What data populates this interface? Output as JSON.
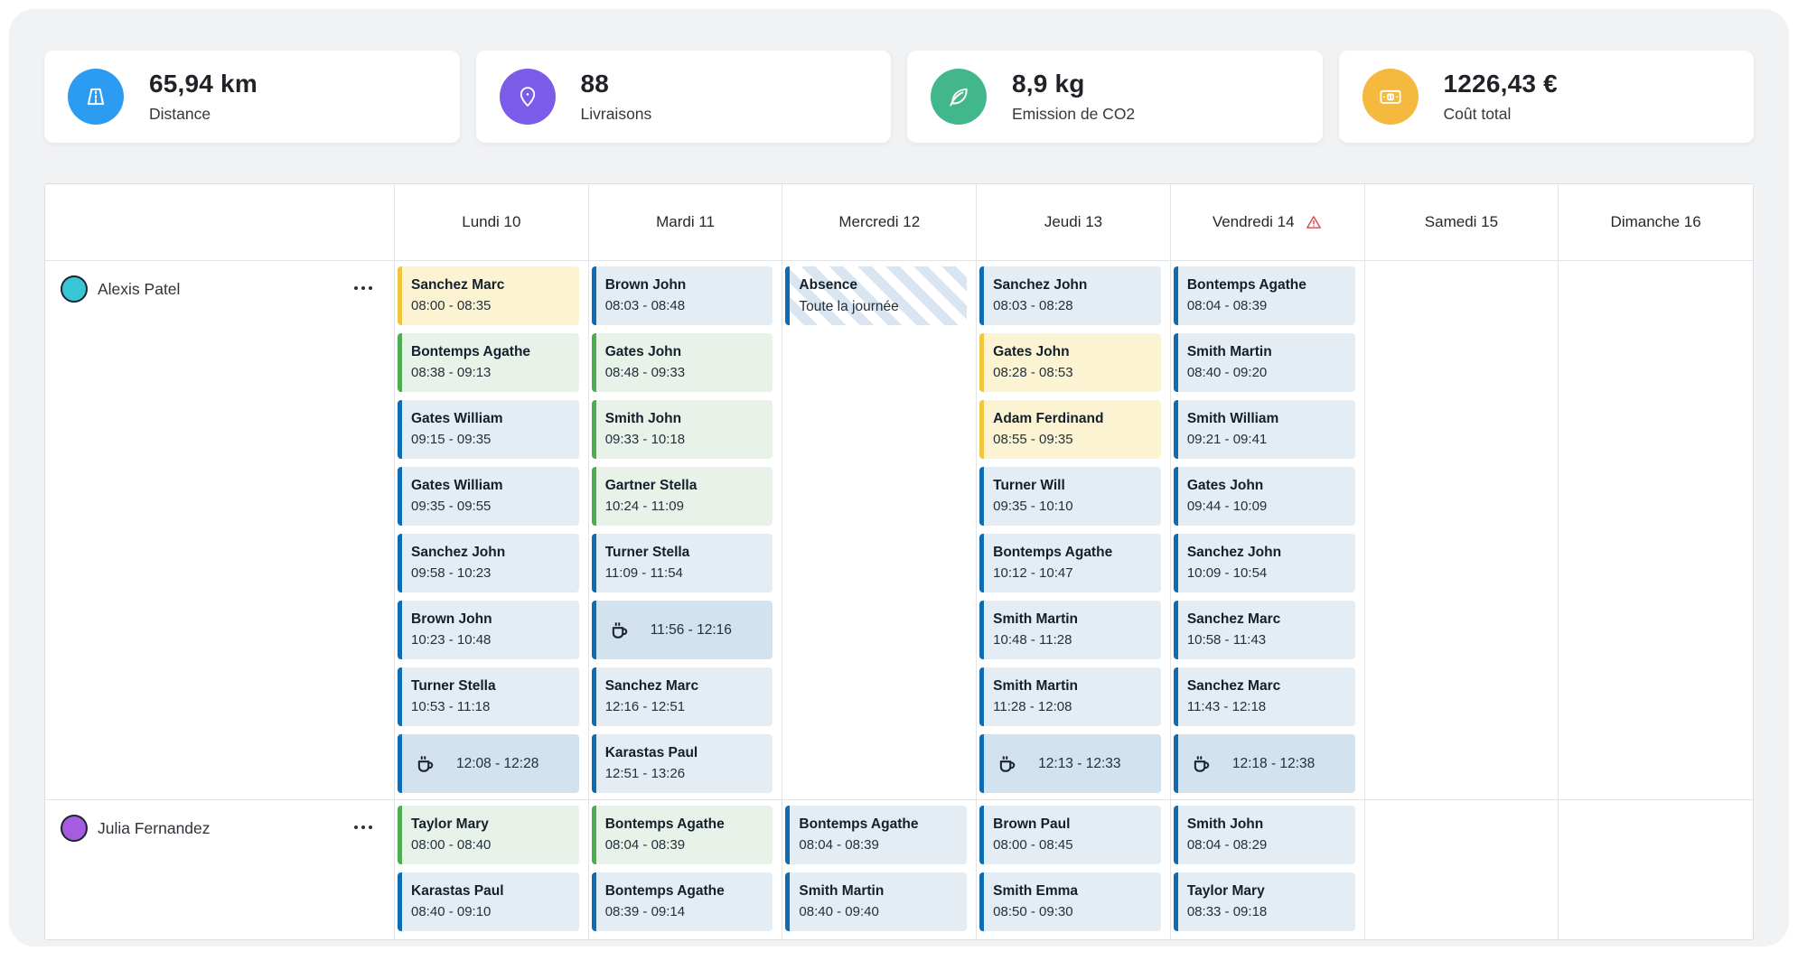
{
  "stats": [
    {
      "icon": "road-icon",
      "color": "#2b9cf2",
      "value": "65,94 km",
      "label": "Distance"
    },
    {
      "icon": "pin-icon",
      "color": "#7a5ce9",
      "value": "88",
      "label": "Livraisons"
    },
    {
      "icon": "leaf-icon",
      "color": "#42b78c",
      "value": "8,9 kg",
      "label": "Emission de CO2"
    },
    {
      "icon": "banknote-icon",
      "color": "#f6b93f",
      "value": "1226,43 €",
      "label": "Coût total"
    }
  ],
  "entry_colors": {
    "blue": {
      "bg": "#e4ecf4",
      "border": "#0f6cb2"
    },
    "green": {
      "bg": "#e9f2e9",
      "border": "#4cae51"
    },
    "yellow": {
      "bg": "#fcf3d3",
      "border": "#eec73e"
    },
    "break": {
      "bg": "#d2e2ef",
      "border": "#0f6cb2"
    },
    "absence": {
      "stripe": "#d9e6f2",
      "border": "#0f6cb2"
    }
  },
  "calendar": {
    "days": [
      {
        "label": "Lundi 10"
      },
      {
        "label": "Mardi 11"
      },
      {
        "label": "Mercredi 12"
      },
      {
        "label": "Jeudi 13"
      },
      {
        "label": "Vendredi 14",
        "warning": true
      },
      {
        "label": "Samedi 15"
      },
      {
        "label": "Dimanche 16"
      }
    ],
    "rows": [
      {
        "name": "Alexis Patel",
        "avatar_color": "#38c5d6",
        "schedule": [
          [
            {
              "type": "visit",
              "name": "Sanchez Marc",
              "time": "08:00 - 08:35",
              "variant": "yellow"
            },
            {
              "type": "visit",
              "name": "Bontemps Agathe",
              "time": "08:38 - 09:13",
              "variant": "green"
            },
            {
              "type": "visit",
              "name": "Gates William",
              "time": "09:15 - 09:35",
              "variant": "blue"
            },
            {
              "type": "visit",
              "name": "Gates William",
              "time": "09:35 - 09:55",
              "variant": "blue"
            },
            {
              "type": "visit",
              "name": "Sanchez John",
              "time": "09:58 - 10:23",
              "variant": "blue"
            },
            {
              "type": "visit",
              "name": "Brown John",
              "time": "10:23 - 10:48",
              "variant": "blue"
            },
            {
              "type": "visit",
              "name": "Turner Stella",
              "time": "10:53 - 11:18",
              "variant": "blue"
            },
            {
              "type": "break",
              "time": "12:08 - 12:28"
            }
          ],
          [
            {
              "type": "visit",
              "name": "Brown John",
              "time": "08:03 - 08:48",
              "variant": "blue"
            },
            {
              "type": "visit",
              "name": "Gates John",
              "time": "08:48 - 09:33",
              "variant": "green"
            },
            {
              "type": "visit",
              "name": "Smith John",
              "time": "09:33 - 10:18",
              "variant": "green"
            },
            {
              "type": "visit",
              "name": "Gartner Stella",
              "time": "10:24 - 11:09",
              "variant": "green"
            },
            {
              "type": "visit",
              "name": "Turner Stella",
              "time": "11:09 - 11:54",
              "variant": "blue"
            },
            {
              "type": "break",
              "time": "11:56 - 12:16"
            },
            {
              "type": "visit",
              "name": "Sanchez Marc",
              "time": "12:16 - 12:51",
              "variant": "blue"
            },
            {
              "type": "visit",
              "name": "Karastas Paul",
              "time": "12:51 - 13:26",
              "variant": "blue"
            }
          ],
          [
            {
              "type": "absence",
              "title": "Absence",
              "subtitle": "Toute la journée"
            }
          ],
          [
            {
              "type": "visit",
              "name": "Sanchez John",
              "time": "08:03 - 08:28",
              "variant": "blue"
            },
            {
              "type": "visit",
              "name": "Gates John",
              "time": "08:28 - 08:53",
              "variant": "yellow"
            },
            {
              "type": "visit",
              "name": "Adam Ferdinand",
              "time": "08:55 - 09:35",
              "variant": "yellow"
            },
            {
              "type": "visit",
              "name": "Turner Will",
              "time": "09:35 - 10:10",
              "variant": "blue"
            },
            {
              "type": "visit",
              "name": "Bontemps Agathe",
              "time": "10:12 - 10:47",
              "variant": "blue"
            },
            {
              "type": "visit",
              "name": "Smith Martin",
              "time": "10:48 - 11:28",
              "variant": "blue"
            },
            {
              "type": "visit",
              "name": "Smith Martin",
              "time": "11:28 - 12:08",
              "variant": "blue"
            },
            {
              "type": "break",
              "time": "12:13 - 12:33"
            }
          ],
          [
            {
              "type": "visit",
              "name": "Bontemps Agathe",
              "time": "08:04 - 08:39",
              "variant": "blue"
            },
            {
              "type": "visit",
              "name": "Smith Martin",
              "time": "08:40 - 09:20",
              "variant": "blue"
            },
            {
              "type": "visit",
              "name": "Smith William",
              "time": "09:21 - 09:41",
              "variant": "blue"
            },
            {
              "type": "visit",
              "name": "Gates John",
              "time": "09:44 - 10:09",
              "variant": "blue"
            },
            {
              "type": "visit",
              "name": "Sanchez John",
              "time": "10:09 - 10:54",
              "variant": "blue"
            },
            {
              "type": "visit",
              "name": "Sanchez Marc",
              "time": "10:58 - 11:43",
              "variant": "blue"
            },
            {
              "type": "visit",
              "name": "Sanchez Marc",
              "time": "11:43 - 12:18",
              "variant": "blue"
            },
            {
              "type": "break",
              "time": "12:18 - 12:38"
            }
          ],
          [],
          []
        ]
      },
      {
        "name": "Julia Fernandez",
        "avatar_color": "#a55ce0",
        "schedule": [
          [
            {
              "type": "visit",
              "name": "Taylor Mary",
              "time": "08:00 - 08:40",
              "variant": "green"
            },
            {
              "type": "visit",
              "name": "Karastas Paul",
              "time": "08:40 - 09:10",
              "variant": "blue"
            }
          ],
          [
            {
              "type": "visit",
              "name": "Bontemps Agathe",
              "time": "08:04 - 08:39",
              "variant": "green"
            },
            {
              "type": "visit",
              "name": "Bontemps Agathe",
              "time": "08:39 - 09:14",
              "variant": "blue"
            }
          ],
          [
            {
              "type": "visit",
              "name": "Bontemps Agathe",
              "time": "08:04 - 08:39",
              "variant": "blue"
            },
            {
              "type": "visit",
              "name": "Smith Martin",
              "time": "08:40 - 09:40",
              "variant": "blue"
            }
          ],
          [
            {
              "type": "visit",
              "name": "Brown Paul",
              "time": "08:00 - 08:45",
              "variant": "blue"
            },
            {
              "type": "visit",
              "name": "Smith Emma",
              "time": "08:50 - 09:30",
              "variant": "blue"
            }
          ],
          [
            {
              "type": "visit",
              "name": "Smith John",
              "time": "08:04 - 08:29",
              "variant": "blue"
            },
            {
              "type": "visit",
              "name": "Taylor Mary",
              "time": "08:33 - 09:18",
              "variant": "blue"
            }
          ],
          [],
          []
        ]
      }
    ]
  }
}
